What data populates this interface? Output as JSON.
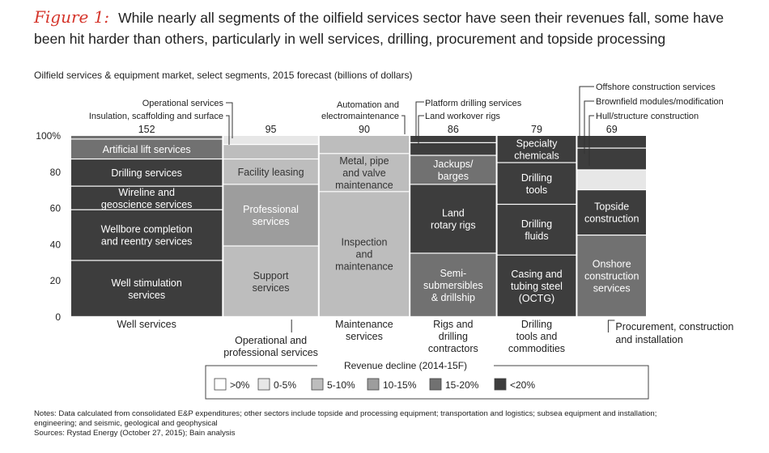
{
  "figure": {
    "label": "Figure 1:",
    "title": "While nearly all segments of the oilfield services sector have seen their revenues fall, some have been hit harder than others, particularly in well services, drilling, procurement and topside processing"
  },
  "subtitle": "Oilfield services & equipment market, select segments, 2015 forecast (billions of dollars)",
  "colors": {
    "gt0": "#ffffff",
    "d0_5": "#e7e7e7",
    "d5_10": "#bdbdbd",
    "d10_15": "#9d9d9d",
    "d15_20": "#717171",
    "lt20": "#3d3d3d"
  },
  "chart_data": {
    "type": "bar",
    "variant": "marimekko",
    "ylim": [
      0,
      100
    ],
    "yticks": [
      "0",
      "20",
      "40",
      "60",
      "80",
      "100%"
    ],
    "columns": [
      {
        "total": 152,
        "label": [
          "Well services"
        ],
        "segments": [
          {
            "label": [
              "Well stimulation",
              "services"
            ],
            "from": 0,
            "to": 31,
            "decline": "lt20"
          },
          {
            "label": [
              "Wellbore completion",
              "and reentry services"
            ],
            "from": 31,
            "to": 59,
            "decline": "lt20"
          },
          {
            "label": [
              "Wireline and",
              "geoscience services"
            ],
            "from": 59,
            "to": 72,
            "decline": "lt20"
          },
          {
            "label": [
              "Drilling services"
            ],
            "from": 72,
            "to": 87,
            "decline": "lt20"
          },
          {
            "label": [
              "Artificial lift services"
            ],
            "from": 87,
            "to": 98,
            "decline": "d15_20"
          },
          {
            "label": [],
            "from": 98,
            "to": 100,
            "decline": "d15_20"
          }
        ]
      },
      {
        "total": 95,
        "label": [
          "Operational and",
          "professional services"
        ],
        "segments": [
          {
            "label": [
              "Support",
              "services"
            ],
            "from": 0,
            "to": 39,
            "decline": "d5_10"
          },
          {
            "label": [
              "Professional",
              "services"
            ],
            "from": 39,
            "to": 73,
            "decline": "d10_15"
          },
          {
            "label": [
              "Facility leasing"
            ],
            "from": 73,
            "to": 87,
            "decline": "d5_10"
          },
          {
            "label": [],
            "from": 87,
            "to": 95,
            "decline": "d5_10"
          },
          {
            "label": [],
            "from": 95,
            "to": 100,
            "decline": "d0_5"
          }
        ]
      },
      {
        "total": 90,
        "label": [
          "Maintenance",
          "services"
        ],
        "segments": [
          {
            "label": [
              "Inspection",
              "and",
              "maintenance"
            ],
            "from": 0,
            "to": 69,
            "decline": "d5_10"
          },
          {
            "label": [
              "Metal, pipe",
              "and valve",
              "maintenance"
            ],
            "from": 69,
            "to": 90,
            "decline": "d5_10"
          },
          {
            "label": [],
            "from": 90,
            "to": 100,
            "decline": "d5_10"
          }
        ]
      },
      {
        "total": 86,
        "label": [
          "Rigs and",
          "drilling",
          "contractors"
        ],
        "segments": [
          {
            "label": [
              "Semi-",
              "submersibles",
              "& drillship"
            ],
            "from": 0,
            "to": 35,
            "decline": "d15_20"
          },
          {
            "label": [
              "Land",
              "rotary rigs"
            ],
            "from": 35,
            "to": 73,
            "decline": "lt20"
          },
          {
            "label": [
              "Jackups/",
              "barges"
            ],
            "from": 73,
            "to": 89,
            "decline": "d15_20"
          },
          {
            "label": [],
            "from": 89,
            "to": 96,
            "decline": "lt20"
          },
          {
            "label": [],
            "from": 96,
            "to": 100,
            "decline": "lt20"
          }
        ]
      },
      {
        "total": 79,
        "label": [
          "Drilling",
          "tools and",
          "commodities"
        ],
        "segments": [
          {
            "label": [
              "Casing and",
              "tubing steel",
              "(OCTG)"
            ],
            "from": 0,
            "to": 34,
            "decline": "lt20"
          },
          {
            "label": [
              "Drilling",
              "fluids"
            ],
            "from": 34,
            "to": 62,
            "decline": "lt20"
          },
          {
            "label": [
              "Drilling",
              "tools"
            ],
            "from": 62,
            "to": 85,
            "decline": "lt20"
          },
          {
            "label": [
              "Specialty",
              "chemicals"
            ],
            "from": 85,
            "to": 100,
            "decline": "lt20"
          }
        ]
      },
      {
        "total": 69,
        "label": [
          "Procurement, construction",
          "and installation"
        ],
        "segments": [
          {
            "label": [
              "Onshore",
              "construction",
              "services"
            ],
            "from": 0,
            "to": 45,
            "decline": "d15_20"
          },
          {
            "label": [
              "Topside",
              "construction"
            ],
            "from": 45,
            "to": 70,
            "decline": "lt20"
          },
          {
            "label": [],
            "from": 70,
            "to": 81,
            "decline": "d0_5"
          },
          {
            "label": [],
            "from": 81,
            "to": 93,
            "decline": "lt20"
          },
          {
            "label": [],
            "from": 93,
            "to": 100,
            "decline": "lt20"
          }
        ]
      }
    ],
    "callouts": [
      "Operational services",
      "Insulation, scaffolding and surface",
      "Automation and",
      "electromaintenance",
      "Platform drilling services",
      "Land workover rigs",
      "Offshore construction services",
      "Brownfield modules/modification",
      "Hull/structure construction"
    ],
    "legend": {
      "title": "Revenue decline (2014-15F)",
      "items": [
        {
          "key": "gt0",
          "label": ">0%"
        },
        {
          "key": "d0_5",
          "label": "0-5%"
        },
        {
          "key": "d5_10",
          "label": "5-10%"
        },
        {
          "key": "d10_15",
          "label": "10-15%"
        },
        {
          "key": "d15_20",
          "label": "15-20%"
        },
        {
          "key": "lt20",
          "label": "<20%"
        }
      ]
    }
  },
  "notes": {
    "line1": "Notes: Data calculated from consolidated E&P expenditures; other sectors include topside and processing equipment; transportation and logistics; subsea equipment and installation;",
    "line2": "engineering; and seismic, geological and geophysical",
    "line3": "Sources: Rystad Energy (October 27, 2015); Bain analysis"
  }
}
